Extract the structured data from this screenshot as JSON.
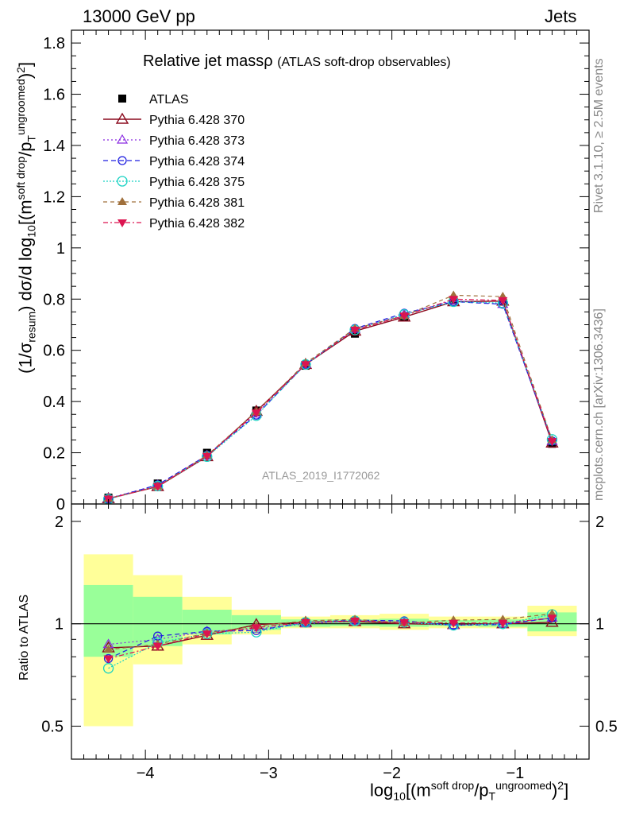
{
  "header": {
    "left": "13000 GeV pp",
    "right": "Jets"
  },
  "side": {
    "rivet": "Rivet 3.1.10, ≥ 2.5M events",
    "mcplots": "mcplots.cern.ch [arXiv:1306.3436]"
  },
  "plot_title": {
    "main": "Relative jet massρ",
    "sub": "(ATLAS soft-drop observables)"
  },
  "watermark": "ATLAS_2019_I1772062",
  "ylabel_top_parts": {
    "a": "(1/σ",
    "a_sub": "resum",
    "b": ") dσ/d log",
    "b_sub": "10",
    "c": "[(m",
    "c_sup": "soft drop",
    "d": "/p",
    "d_sub": "T",
    "d_sup": "ungroomed",
    "e": ")",
    "e_sup": "2",
    "f": "]"
  },
  "ylabel_bottom": "Ratio to ATLAS",
  "xlabel_parts": {
    "a": "log",
    "a_sub": "10",
    "b": "[(m",
    "b_sup": "soft drop",
    "c": "/p",
    "c_sub": "T",
    "c_sup": "ungroomed",
    "d": ")",
    "d_sup": "2",
    "e": "]"
  },
  "colors": {
    "ATLAS": "#000000",
    "s370": "#8b0a1e",
    "s373": "#8a2be2",
    "s374": "#1e1ee0",
    "s375": "#19d2c3",
    "s381": "#a0703c",
    "s382": "#dc1450",
    "band_yellow": "#ffff99",
    "band_green": "#99ff99"
  },
  "chart_data": [
    {
      "type": "line",
      "title": "Relative jet massρ (ATLAS soft-drop observables)",
      "xlim": [
        -4.6,
        -0.4
      ],
      "ylim": [
        0,
        1.85
      ],
      "yticks": [
        0,
        0.2,
        0.4,
        0.6,
        0.8,
        1,
        1.2,
        1.4,
        1.6,
        1.8
      ],
      "ytick_labels": [
        "0",
        "0.2",
        "0.4",
        "0.6",
        "0.8",
        "1",
        "1.2",
        "1.4",
        "1.6",
        "1.8"
      ],
      "x": [
        -4.3,
        -3.9,
        -3.5,
        -3.1,
        -2.7,
        -2.3,
        -1.9,
        -1.5,
        -1.1,
        -0.7
      ],
      "data": {
        "name": "ATLAS",
        "values": [
          0.025,
          0.08,
          0.2,
          0.365,
          0.54,
          0.665,
          0.73,
          0.795,
          0.79,
          0.235
        ]
      },
      "series": [
        {
          "name": "Pythia 6.428 370",
          "values": [
            0.021,
            0.068,
            0.185,
            0.362,
            0.545,
            0.675,
            0.73,
            0.79,
            0.792,
            0.238
          ]
        },
        {
          "name": "Pythia 6.428 373",
          "values": [
            0.022,
            0.074,
            0.19,
            0.352,
            0.545,
            0.682,
            0.74,
            0.795,
            0.78,
            0.245
          ]
        },
        {
          "name": "Pythia 6.428 374",
          "values": [
            0.02,
            0.075,
            0.19,
            0.347,
            0.545,
            0.685,
            0.745,
            0.79,
            0.78,
            0.246
          ]
        },
        {
          "name": "Pythia 6.428 375",
          "values": [
            0.019,
            0.07,
            0.185,
            0.345,
            0.545,
            0.68,
            0.74,
            0.79,
            0.785,
            0.252
          ]
        },
        {
          "name": "Pythia 6.428 381",
          "values": [
            0.021,
            0.069,
            0.19,
            0.36,
            0.55,
            0.685,
            0.735,
            0.815,
            0.81,
            0.25
          ]
        },
        {
          "name": "Pythia 6.428 382",
          "values": [
            0.02,
            0.069,
            0.187,
            0.356,
            0.545,
            0.68,
            0.735,
            0.8,
            0.795,
            0.245
          ]
        }
      ]
    },
    {
      "type": "line",
      "ylabel": "Ratio to ATLAS",
      "xlim": [
        -4.6,
        -0.4
      ],
      "ylim": [
        0.4,
        2.25
      ],
      "log_y": true,
      "yticks": [
        0.5,
        1,
        2
      ],
      "ytick_labels": [
        "0.5",
        "1",
        "2"
      ],
      "xticks": [
        -4,
        -3,
        -2,
        -1
      ],
      "xtick_labels": [
        "−4",
        "−3",
        "−2",
        "−1"
      ],
      "reference": 1,
      "bin_edges": [
        -4.5,
        -4.1,
        -3.7,
        -3.3,
        -2.9,
        -2.5,
        -2.1,
        -1.7,
        -1.3,
        -0.9,
        -0.5
      ],
      "band_outer": {
        "low": [
          0.5,
          0.76,
          0.87,
          0.93,
          0.97,
          0.97,
          0.96,
          0.97,
          0.97,
          0.92
        ],
        "high": [
          1.6,
          1.39,
          1.2,
          1.1,
          1.05,
          1.06,
          1.07,
          1.05,
          1.05,
          1.13
        ]
      },
      "band_inner": {
        "low": [
          0.8,
          0.86,
          0.93,
          0.96,
          0.98,
          0.985,
          0.98,
          0.985,
          0.98,
          0.95
        ],
        "high": [
          1.3,
          1.2,
          1.1,
          1.06,
          1.03,
          1.03,
          1.035,
          1.025,
          1.03,
          1.08
        ]
      },
      "x": [
        -4.3,
        -3.9,
        -3.5,
        -3.1,
        -2.7,
        -2.3,
        -1.9,
        -1.5,
        -1.1,
        -0.7
      ],
      "series": [
        {
          "name": "Pythia 6.428 370",
          "values": [
            0.85,
            0.86,
            0.925,
            0.995,
            1.01,
            1.015,
            1.0,
            0.995,
            1.0,
            1.01
          ]
        },
        {
          "name": "Pythia 6.428 373",
          "values": [
            0.87,
            0.9,
            0.95,
            0.965,
            1.0,
            1.02,
            1.01,
            0.99,
            1.0,
            1.04
          ]
        },
        {
          "name": "Pythia 6.428 374",
          "values": [
            0.79,
            0.92,
            0.95,
            0.955,
            1.01,
            1.025,
            1.02,
            0.99,
            0.995,
            1.04
          ]
        },
        {
          "name": "Pythia 6.428 375",
          "values": [
            0.74,
            0.88,
            0.935,
            0.945,
            1.01,
            1.02,
            1.01,
            0.99,
            1.0,
            1.065
          ]
        },
        {
          "name": "Pythia 6.428 381",
          "values": [
            0.84,
            0.87,
            0.94,
            0.985,
            1.02,
            1.03,
            1.005,
            1.025,
            1.03,
            1.07
          ]
        },
        {
          "name": "Pythia 6.428 382",
          "values": [
            0.79,
            0.86,
            0.935,
            0.975,
            1.01,
            1.02,
            1.01,
            1.005,
            1.005,
            1.04
          ]
        }
      ]
    }
  ]
}
